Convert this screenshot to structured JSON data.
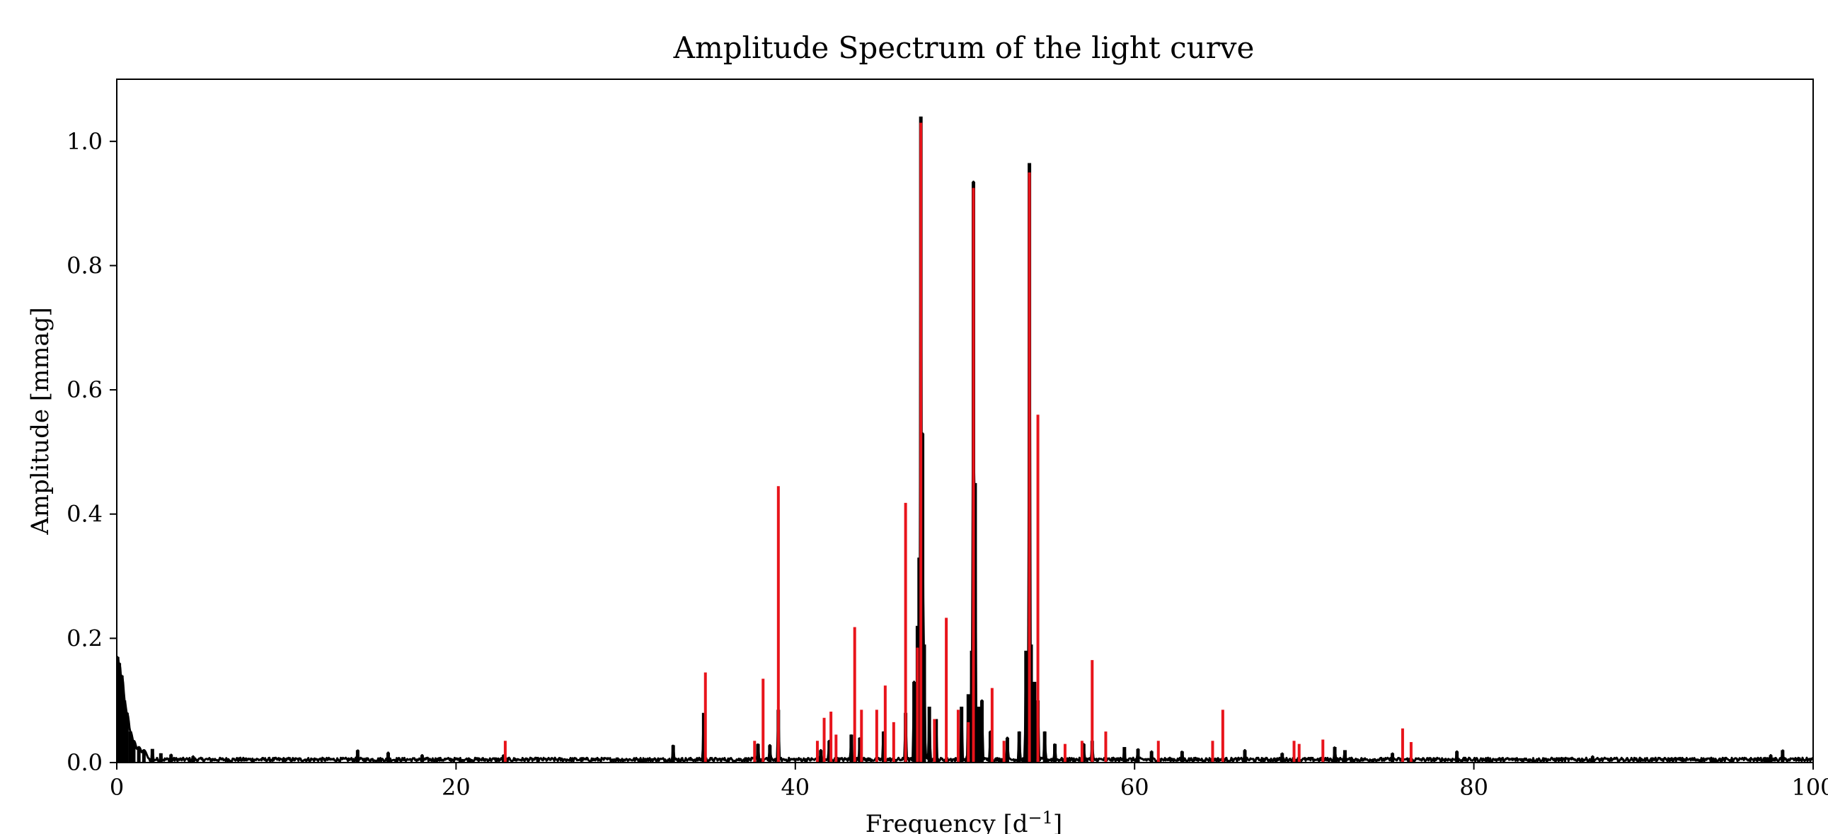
{
  "chart_data": {
    "type": "line",
    "title": "Amplitude Spectrum of the light curve",
    "xlabel": "Frequency [d",
    "xlabel_sup": "−1",
    "xlabel_end": "]",
    "ylabel": "Amplitude [mmag]",
    "xlim": [
      0,
      100
    ],
    "ylim": [
      0,
      1.1
    ],
    "xticks": [
      0,
      20,
      40,
      60,
      80,
      100
    ],
    "xtick_labels": [
      "0",
      "20",
      "40",
      "60",
      "80",
      "100"
    ],
    "yticks": [
      0.0,
      0.2,
      0.4,
      0.6,
      0.8,
      1.0
    ],
    "ytick_labels": [
      "0.0",
      "0.2",
      "0.4",
      "0.6",
      "0.8",
      "1.0"
    ],
    "grid": false,
    "series": [
      {
        "color": "#000000",
        "noise_floor": 0.006,
        "peaks": [
          [
            0.05,
            0.17
          ],
          [
            0.15,
            0.16
          ],
          [
            0.3,
            0.14
          ],
          [
            0.45,
            0.1
          ],
          [
            0.6,
            0.08
          ],
          [
            0.8,
            0.05
          ],
          [
            1.0,
            0.035
          ],
          [
            1.3,
            0.025
          ],
          [
            1.6,
            0.02
          ],
          [
            2.1,
            0.022
          ],
          [
            2.6,
            0.015
          ],
          [
            3.2,
            0.013
          ],
          [
            4.5,
            0.01
          ],
          [
            14.2,
            0.02
          ],
          [
            16.0,
            0.016
          ],
          [
            18.0,
            0.012
          ],
          [
            22.8,
            0.012
          ],
          [
            32.8,
            0.028
          ],
          [
            34.6,
            0.08
          ],
          [
            37.8,
            0.03
          ],
          [
            38.5,
            0.028
          ],
          [
            39.0,
            0.085
          ],
          [
            41.5,
            0.02
          ],
          [
            42.0,
            0.035
          ],
          [
            43.3,
            0.045
          ],
          [
            43.8,
            0.04
          ],
          [
            45.2,
            0.05
          ],
          [
            46.5,
            0.08
          ],
          [
            47.0,
            0.13
          ],
          [
            47.2,
            0.22
          ],
          [
            47.3,
            0.33
          ],
          [
            47.4,
            1.04
          ],
          [
            47.5,
            0.53
          ],
          [
            47.6,
            0.19
          ],
          [
            47.9,
            0.09
          ],
          [
            48.3,
            0.07
          ],
          [
            49.8,
            0.09
          ],
          [
            50.2,
            0.11
          ],
          [
            50.4,
            0.18
          ],
          [
            50.5,
            0.935
          ],
          [
            50.6,
            0.45
          ],
          [
            50.8,
            0.09
          ],
          [
            51.0,
            0.1
          ],
          [
            51.5,
            0.05
          ],
          [
            52.5,
            0.04
          ],
          [
            53.2,
            0.05
          ],
          [
            53.6,
            0.18
          ],
          [
            53.8,
            0.965
          ],
          [
            53.9,
            0.19
          ],
          [
            54.1,
            0.13
          ],
          [
            54.3,
            0.1
          ],
          [
            54.7,
            0.05
          ],
          [
            55.3,
            0.03
          ],
          [
            57.0,
            0.03
          ],
          [
            57.5,
            0.035
          ],
          [
            59.4,
            0.025
          ],
          [
            60.2,
            0.022
          ],
          [
            61.0,
            0.018
          ],
          [
            62.8,
            0.018
          ],
          [
            66.5,
            0.02
          ],
          [
            68.7,
            0.015
          ],
          [
            71.8,
            0.025
          ],
          [
            72.4,
            0.02
          ],
          [
            75.2,
            0.015
          ],
          [
            79.0,
            0.018
          ],
          [
            87.0,
            0.01
          ],
          [
            97.5,
            0.012
          ],
          [
            98.2,
            0.02
          ]
        ]
      },
      {
        "color": "#e8141b",
        "peaks": [
          [
            22.9,
            0.035
          ],
          [
            34.7,
            0.145
          ],
          [
            37.6,
            0.035
          ],
          [
            38.1,
            0.135
          ],
          [
            39.0,
            0.445
          ],
          [
            41.3,
            0.035
          ],
          [
            41.7,
            0.072
          ],
          [
            42.1,
            0.082
          ],
          [
            42.4,
            0.045
          ],
          [
            43.5,
            0.218
          ],
          [
            43.9,
            0.085
          ],
          [
            44.8,
            0.085
          ],
          [
            45.3,
            0.124
          ],
          [
            45.8,
            0.065
          ],
          [
            46.5,
            0.418
          ],
          [
            47.2,
            0.185
          ],
          [
            47.4,
            1.03
          ],
          [
            48.2,
            0.07
          ],
          [
            48.9,
            0.233
          ],
          [
            49.6,
            0.085
          ],
          [
            50.2,
            0.065
          ],
          [
            50.5,
            0.925
          ],
          [
            51.6,
            0.12
          ],
          [
            52.3,
            0.035
          ],
          [
            53.8,
            0.95
          ],
          [
            54.3,
            0.56
          ],
          [
            55.9,
            0.03
          ],
          [
            56.9,
            0.035
          ],
          [
            57.5,
            0.165
          ],
          [
            58.3,
            0.05
          ],
          [
            61.4,
            0.035
          ],
          [
            64.6,
            0.035
          ],
          [
            65.2,
            0.085
          ],
          [
            69.4,
            0.035
          ],
          [
            69.7,
            0.03
          ],
          [
            71.1,
            0.037
          ],
          [
            75.8,
            0.055
          ],
          [
            76.3,
            0.033
          ]
        ]
      }
    ]
  }
}
